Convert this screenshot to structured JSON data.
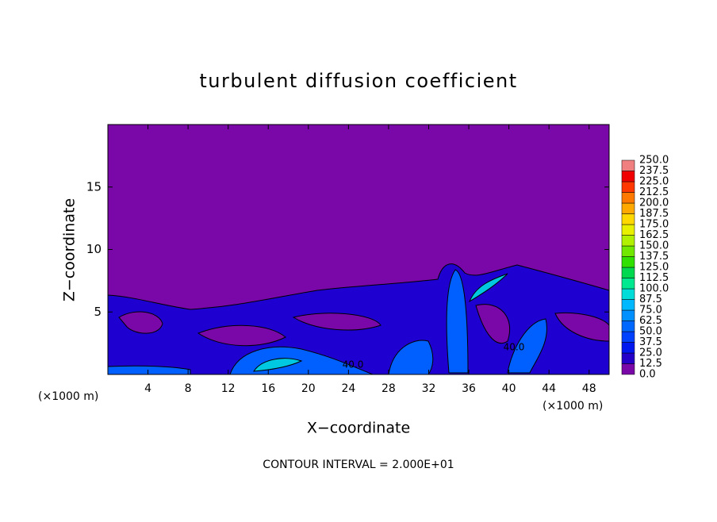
{
  "chart_data": {
    "type": "contour",
    "title": "turbulent diffusion coefficient",
    "xlabel": "X−coordinate",
    "ylabel": "Z−coordinate",
    "unit": "(×1000 m)",
    "footnote": "CONTOUR INTERVAL = 2.000E+01",
    "xlim": [
      0,
      50
    ],
    "xticks": [
      4,
      8,
      12,
      16,
      20,
      24,
      28,
      32,
      36,
      40,
      44,
      48
    ],
    "ylim": [
      0,
      20
    ],
    "yticks": [
      5,
      10,
      15
    ],
    "colorbar": {
      "levels": [
        {
          "value": 0,
          "label": "0.0"
        },
        12.5,
        {
          "value": 25,
          "label": "25.0"
        },
        37.5,
        {
          "value": 50,
          "label": "50.0"
        },
        62.5,
        {
          "value": 75,
          "label": "75.0"
        },
        87.5,
        {
          "value": 100,
          "label": "100.0"
        },
        112.5,
        {
          "value": 125,
          "label": "125.0"
        },
        137.5,
        {
          "value": 150,
          "label": "150.0"
        },
        162.5,
        {
          "value": 175,
          "label": "175.0"
        },
        187.5,
        {
          "value": 200,
          "label": "200.0"
        },
        212.5,
        {
          "value": 225,
          "label": "225.0"
        },
        237.5,
        {
          "value": 250,
          "label": "250.0"
        }
      ],
      "colors": [
        "#7a08a8",
        "#2400c8",
        "#0018f0",
        "#0040ff",
        "#0068ff",
        "#0090ff",
        "#00b8ff",
        "#00dcd8",
        "#00e890",
        "#00d850",
        "#30e000",
        "#70e800",
        "#b0f000",
        "#e8f000",
        "#ffd800",
        "#ffa800",
        "#ff7800",
        "#ff3800",
        "#f00000",
        "#f08080"
      ]
    },
    "contour_labels": [
      {
        "value": 40,
        "label": "40.0"
      },
      {
        "value": 40,
        "label": "40.0"
      }
    ]
  }
}
